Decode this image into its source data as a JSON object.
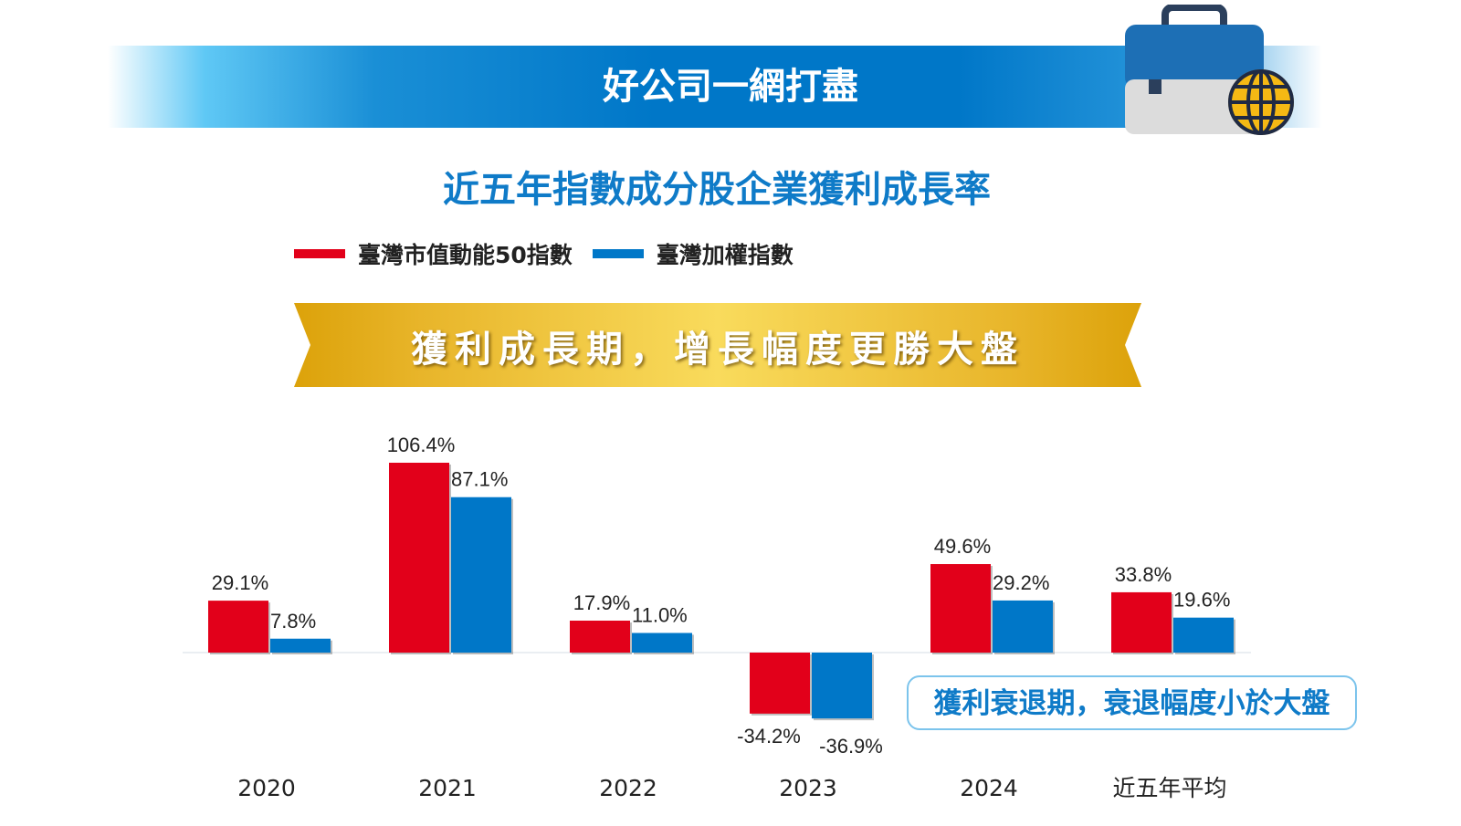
{
  "header": {
    "title": "好公司一網打盡",
    "icon": "briefcase-globe-icon"
  },
  "subtitle": "近五年指數成分股企業獲利成長率",
  "ribbon_text": "獲利成長期，增長幅度更勝大盤",
  "callout_text": "獲利衰退期，衰退幅度小於大盤",
  "colors": {
    "red": "#e2001a",
    "blue": "#0077c8",
    "gold": "#e3ad14",
    "title_blue": "#0f7bc8"
  },
  "chart_data": {
    "type": "bar",
    "categories": [
      "2020",
      "2021",
      "2022",
      "2023",
      "2024",
      "近五年平均"
    ],
    "series": [
      {
        "name": "臺灣市值動能50指數",
        "values": [
          29.1,
          106.4,
          17.9,
          -34.2,
          49.6,
          33.8
        ],
        "labels": [
          "29.1%",
          "106.4%",
          "17.9%",
          "-34.2%",
          "49.6%",
          "33.8%"
        ],
        "color": "#e2001a"
      },
      {
        "name": "臺灣加權指數",
        "values": [
          7.8,
          87.1,
          11.0,
          -36.9,
          29.2,
          19.6
        ],
        "labels": [
          "7.8%",
          "87.1%",
          "11.0%",
          "-36.9%",
          "29.2%",
          "19.6%"
        ],
        "color": "#0077c8"
      }
    ],
    "ylabel": "",
    "xlabel": "",
    "grid": false,
    "legend": "top-left"
  }
}
